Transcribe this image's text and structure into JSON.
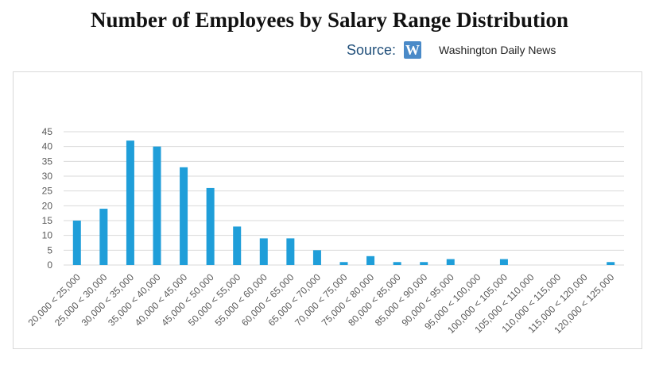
{
  "title": "Number of Employees by Salary Range Distribution",
  "source": {
    "label": "Source:",
    "logo_letter": "W",
    "publisher": "Washington Daily News"
  },
  "colors": {
    "bar": "#1f9ed9",
    "grid": "#d9d9d9",
    "tick_text": "#595959"
  },
  "chart_data": {
    "type": "bar",
    "categories": [
      "20,000 < 25,000",
      "25,000 < 30,000",
      "30,000 < 35,000",
      "35,000 < 40,000",
      "40,000 < 45,000",
      "45,000 < 50,000",
      "50,000 < 55,000",
      "55,000 < 60,000",
      "60,000 < 65,000",
      "65,000 < 70,000",
      "70,000 < 75,000",
      "75,000 < 80,000",
      "80,000 < 85,000",
      "85,000 < 90,000",
      "90,000 < 95,000",
      "95,000 < 100,000",
      "100,000 < 105,000",
      "105,000 < 110,000",
      "110,000 < 115,000",
      "115,000 < 120,000",
      "120,000 < 125,000"
    ],
    "values": [
      15,
      19,
      42,
      40,
      33,
      26,
      13,
      9,
      9,
      5,
      1,
      3,
      1,
      1,
      2,
      0,
      2,
      0,
      0,
      0,
      1
    ],
    "title": "Number of Employees by Salary Range Distribution",
    "xlabel": "",
    "ylabel": "",
    "ylim": [
      0,
      45
    ],
    "yticks": [
      0,
      5,
      10,
      15,
      20,
      25,
      30,
      35,
      40,
      45
    ],
    "grid": true,
    "legend": "none"
  }
}
